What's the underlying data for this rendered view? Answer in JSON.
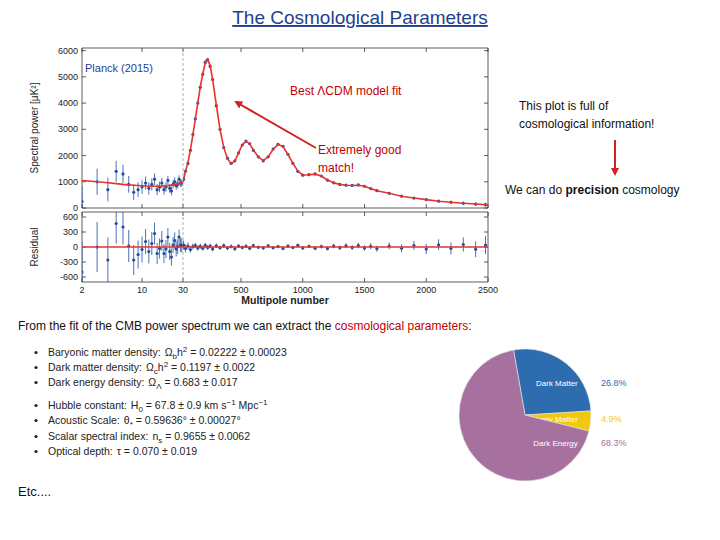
{
  "slide": {
    "title": "The Cosmological Parameters",
    "source": "Planck (2015)",
    "fit_label": "Best ΛCDM model fit",
    "match_note": [
      "Extremely good",
      "match!"
    ],
    "info_note": [
      "This plot is full of",
      "cosmological information!"
    ],
    "conclusion": [
      {
        "text": "We can do "
      },
      {
        "text": "precision",
        "bold": true
      },
      {
        "text": " cosmology"
      }
    ],
    "intro": [
      {
        "text": "From the fit of the CMB power spectrum  we can extract the "
      },
      {
        "text": "cosmological parameters",
        "color": "#c00000"
      },
      {
        "text": ":"
      }
    ],
    "parameters": [
      {
        "label": "Baryonic matter density:",
        "formula": [
          {
            "text": "Ω"
          },
          {
            "sub": "b"
          },
          {
            "text": "h"
          },
          {
            "sup": "2"
          },
          {
            "text": " = 0.02222 ± 0.00023"
          }
        ]
      },
      {
        "label": "Dark matter density:",
        "formula": [
          {
            "text": "Ω"
          },
          {
            "sub": "c"
          },
          {
            "text": "h"
          },
          {
            "sup": "2"
          },
          {
            "text": " = 0.1197 ± 0.0022"
          }
        ]
      },
      {
        "label": "Dark energy density:",
        "formula": [
          {
            "text": "Ω"
          },
          {
            "sub": "Λ"
          },
          {
            "text": " = 0.683 ± 0.017"
          }
        ]
      },
      {
        "label": "Hubble constant:",
        "formula": [
          {
            "text": "H"
          },
          {
            "sub": "0"
          },
          {
            "text": " = 67.8 ± 0.9 km s"
          },
          {
            "sup": "−1"
          },
          {
            "text": " Mpc"
          },
          {
            "sup": "−1"
          }
        ]
      },
      {
        "label": "Acoustic Scale:",
        "formula": [
          {
            "text": "θ"
          },
          {
            "sub": "*"
          },
          {
            "text": " = 0.59636° ± 0.00027°"
          }
        ]
      },
      {
        "label": "Scalar spectral index:",
        "formula": [
          {
            "text": "n"
          },
          {
            "sub": "s"
          },
          {
            "text": " = 0.9655 ± 0.0062"
          }
        ]
      },
      {
        "label": "Optical depth:",
        "formula": [
          {
            "text": "τ = 0.070 ± 0.019"
          }
        ]
      }
    ],
    "footer": "Etc...."
  },
  "chart_data": [
    {
      "type": "scatter",
      "y_label": "Spectral power [μK²]",
      "log": "x",
      "xlim": [
        2,
        30
      ],
      "ylim": [
        0,
        6100
      ],
      "xticks": [
        2,
        10,
        30
      ],
      "yticks": [
        0,
        1000,
        2000,
        3000,
        4000,
        5000,
        6000
      ],
      "tick_labels": "y",
      "series": [
        {
          "type": "scatter",
          "color": "#1f4e9e",
          "marker": "circle",
          "x": [
            2,
            3,
            4,
            5,
            6,
            7,
            8,
            9,
            10,
            11,
            12,
            13,
            14,
            15,
            16,
            17,
            18,
            19,
            20,
            21,
            22,
            23,
            24,
            25,
            26,
            27,
            28,
            29
          ],
          "values": [
            250,
            1000,
            700,
            1400,
            1300,
            900,
            600,
            700,
            800,
            950,
            750,
            900,
            1100,
            700,
            800,
            950,
            700,
            800,
            1050,
            750,
            650,
            900,
            1000,
            850,
            900,
            1100,
            950,
            950
          ],
          "errors": [
            600,
            500,
            450,
            400,
            350,
            320,
            300,
            280,
            260,
            250,
            240,
            230,
            220,
            210,
            200,
            200,
            190,
            180,
            180,
            170,
            170,
            160,
            160,
            150,
            150,
            150,
            140,
            140
          ]
        },
        {
          "type": "line",
          "color": "#e8322b",
          "line_style": "solid",
          "x": [
            2,
            3,
            4,
            5,
            6,
            8,
            10,
            13,
            16,
            20,
            25,
            30
          ],
          "values": [
            1050,
            1000,
            960,
            930,
            900,
            870,
            850,
            830,
            830,
            850,
            900,
            980
          ]
        }
      ]
    },
    {
      "type": "scatter",
      "xlim": [
        30,
        2500
      ],
      "ylim": [
        0,
        6100
      ],
      "xticks": [
        500,
        1000,
        1500,
        2000,
        2500
      ],
      "yticks": [
        0,
        1000,
        2000,
        3000,
        4000,
        5000,
        6000
      ],
      "tick_labels": false,
      "series": [
        {
          "type": "scatter",
          "color": "#1f4e9e",
          "marker": "circle",
          "x": [
            35,
            50,
            70,
            90,
            110,
            130,
            150,
            170,
            190,
            210,
            230,
            250,
            270,
            300,
            330,
            360,
            390,
            420,
            450,
            480,
            510,
            540,
            570,
            600,
            640,
            680,
            720,
            760,
            800,
            840,
            880,
            920,
            960,
            1000,
            1050,
            1100,
            1150,
            1200,
            1250,
            1300,
            1350,
            1400,
            1450,
            1500,
            1550,
            1600,
            1700,
            1800,
            1900,
            2000,
            2100,
            2200,
            2300,
            2400,
            2480
          ],
          "values": [
            1100,
            1400,
            1700,
            2200,
            2800,
            3400,
            4000,
            4600,
            5100,
            5550,
            5650,
            5400,
            4900,
            3900,
            3000,
            2300,
            1900,
            1700,
            1800,
            2100,
            2400,
            2550,
            2450,
            2200,
            1950,
            1800,
            1950,
            2250,
            2430,
            2350,
            2050,
            1700,
            1400,
            1250,
            1270,
            1300,
            1220,
            1060,
            960,
            900,
            870,
            860,
            880,
            830,
            740,
            660,
            560,
            450,
            380,
            320,
            260,
            220,
            180,
            150,
            125
          ],
          "errors": [
            90,
            80,
            70,
            70,
            70,
            70,
            70,
            70,
            70,
            70,
            70,
            70,
            60,
            60,
            50,
            50,
            40,
            40,
            40,
            40,
            40,
            40,
            40,
            35,
            35,
            35,
            35,
            35,
            35,
            35,
            35,
            35,
            35,
            35,
            35,
            35,
            35,
            35,
            35,
            40,
            40,
            40,
            40,
            40,
            40,
            40,
            45,
            45,
            50,
            50,
            55,
            60,
            65,
            70,
            80
          ]
        },
        {
          "type": "line",
          "color": "#e8322b",
          "line_style": "solid",
          "x": [
            30,
            50,
            70,
            90,
            110,
            130,
            150,
            170,
            190,
            210,
            220,
            230,
            250,
            270,
            300,
            330,
            360,
            390,
            420,
            450,
            480,
            510,
            540,
            570,
            600,
            640,
            680,
            720,
            760,
            800,
            840,
            880,
            920,
            960,
            1000,
            1050,
            1100,
            1150,
            1200,
            1250,
            1300,
            1350,
            1400,
            1450,
            1500,
            1550,
            1600,
            1700,
            1800,
            1900,
            2000,
            2100,
            2200,
            2300,
            2400,
            2500
          ],
          "values": [
            980,
            1390,
            1720,
            2210,
            2790,
            3400,
            4020,
            4620,
            5120,
            5520,
            5650,
            5660,
            5420,
            4900,
            3920,
            2990,
            2310,
            1880,
            1690,
            1790,
            2100,
            2410,
            2540,
            2450,
            2210,
            1950,
            1810,
            1960,
            2240,
            2420,
            2340,
            2040,
            1700,
            1410,
            1260,
            1270,
            1290,
            1220,
            1070,
            960,
            900,
            870,
            860,
            870,
            830,
            740,
            660,
            560,
            450,
            380,
            320,
            260,
            220,
            180,
            150,
            120
          ]
        }
      ]
    },
    {
      "type": "scatter",
      "y_label": "Residual",
      "log": "x",
      "xlim": [
        2,
        30
      ],
      "ylim": [
        -700,
        700
      ],
      "xticks": [
        2,
        10,
        30
      ],
      "yticks": [
        -600,
        -300,
        0,
        300,
        600
      ],
      "tick_labels": true,
      "series": [
        {
          "type": "scatter",
          "color": "#1f4e9e",
          "marker": "circle",
          "x": [
            2,
            3,
            4,
            5,
            6,
            7,
            8,
            9,
            10,
            11,
            12,
            13,
            14,
            15,
            16,
            17,
            18,
            19,
            20,
            21,
            22,
            23,
            24,
            25,
            26,
            27,
            28,
            29
          ],
          "values": [
            -500,
            0,
            -260,
            470,
            400,
            20,
            -260,
            -150,
            -50,
            110,
            -90,
            70,
            270,
            -130,
            -30,
            120,
            -130,
            -40,
            200,
            -90,
            -200,
            40,
            130,
            -40,
            10,
            200,
            40,
            30
          ],
          "errors": [
            600,
            500,
            450,
            400,
            350,
            320,
            300,
            280,
            260,
            250,
            240,
            230,
            220,
            210,
            200,
            200,
            190,
            180,
            180,
            170,
            170,
            160,
            160,
            150,
            150,
            150,
            140,
            140
          ]
        },
        {
          "type": "line",
          "color": "#e8322b",
          "line_style": "solid",
          "x": [
            2,
            30
          ],
          "values": [
            0,
            0
          ]
        }
      ]
    },
    {
      "type": "scatter",
      "x_label": "Multipole number",
      "xlim": [
        30,
        2500
      ],
      "ylim": [
        -700,
        700
      ],
      "xticks": [
        500,
        1000,
        1500,
        2000,
        2500
      ],
      "yticks": [
        -600,
        -300,
        0,
        300,
        600
      ],
      "tick_labels": "x",
      "series": [
        {
          "type": "scatter",
          "color": "#1f4e9e",
          "marker": "circle",
          "x": [
            35,
            50,
            70,
            90,
            110,
            130,
            150,
            170,
            190,
            210,
            230,
            250,
            270,
            300,
            330,
            360,
            390,
            420,
            450,
            480,
            510,
            540,
            570,
            600,
            640,
            680,
            720,
            760,
            800,
            840,
            880,
            920,
            960,
            1000,
            1050,
            1100,
            1150,
            1200,
            1250,
            1300,
            1350,
            1400,
            1450,
            1500,
            1550,
            1600,
            1700,
            1800,
            1900,
            2000,
            2100,
            2200,
            2300,
            2400,
            2480
          ],
          "values": [
            40,
            -30,
            20,
            -50,
            10,
            30,
            -20,
            15,
            -25,
            35,
            -10,
            20,
            -40,
            25,
            -15,
            30,
            -20,
            10,
            -35,
            20,
            -10,
            15,
            -25,
            30,
            -5,
            -20,
            25,
            -15,
            10,
            -30,
            20,
            -10,
            35,
            -20,
            15,
            -25,
            10,
            -30,
            20,
            -15,
            25,
            -10,
            30,
            -20,
            15,
            -35,
            20,
            -25,
            30,
            -40,
            45,
            -30,
            50,
            -45,
            40
          ],
          "errors": [
            90,
            80,
            70,
            60,
            60,
            55,
            55,
            50,
            50,
            50,
            50,
            45,
            45,
            45,
            40,
            40,
            40,
            40,
            40,
            40,
            40,
            40,
            40,
            35,
            35,
            35,
            35,
            35,
            35,
            35,
            35,
            35,
            35,
            35,
            35,
            40,
            40,
            40,
            45,
            45,
            50,
            50,
            55,
            55,
            60,
            60,
            70,
            80,
            90,
            100,
            110,
            120,
            140,
            160,
            180
          ]
        },
        {
          "type": "line",
          "color": "#e8322b",
          "line_style": "solid",
          "x": [
            30,
            2500
          ],
          "values": [
            0,
            0
          ]
        }
      ]
    },
    {
      "type": "pie",
      "data_labels": true,
      "categories": [
        "Dark Matter",
        "Ordinary Matter",
        "Dark Energy"
      ],
      "values": [
        26.8,
        4.9,
        68.3
      ],
      "value_labels": [
        "26.8%",
        "4.9%",
        "68.3%"
      ],
      "colors": [
        "#2e6cb0",
        "#f2c80f",
        "#a7719f"
      ]
    }
  ]
}
